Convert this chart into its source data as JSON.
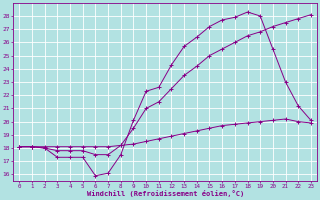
{
  "background_color": "#b2e2e2",
  "grid_color": "#d0f0f0",
  "line_color": "#880088",
  "xlabel": "Windchill (Refroidissement éolien,°C)",
  "xlim": [
    -0.5,
    23.5
  ],
  "ylim": [
    15.5,
    29.0
  ],
  "yticks": [
    16,
    17,
    18,
    19,
    20,
    21,
    22,
    23,
    24,
    25,
    26,
    27,
    28
  ],
  "xticks": [
    0,
    1,
    2,
    3,
    4,
    5,
    6,
    7,
    8,
    9,
    10,
    11,
    12,
    13,
    14,
    15,
    16,
    17,
    18,
    19,
    20,
    21,
    22,
    23
  ],
  "curves": [
    {
      "x": [
        0,
        1,
        2,
        3,
        4,
        5,
        6,
        7,
        8,
        9,
        10,
        11,
        12,
        13,
        14,
        15,
        16,
        17,
        18,
        19,
        20,
        21,
        22,
        23
      ],
      "y": [
        18.1,
        18.1,
        18.0,
        17.3,
        17.3,
        17.3,
        15.9,
        16.1,
        17.5,
        20.1,
        22.3,
        22.6,
        24.3,
        25.7,
        26.4,
        27.2,
        27.7,
        27.9,
        28.3,
        28.0,
        25.5,
        23.0,
        21.2,
        20.1
      ]
    },
    {
      "x": [
        0,
        1,
        2,
        3,
        4,
        5,
        6,
        7,
        8,
        9,
        10,
        11,
        12,
        13,
        14,
        15,
        16,
        17,
        18,
        19,
        20,
        21,
        22,
        23
      ],
      "y": [
        18.1,
        18.1,
        18.0,
        17.8,
        17.8,
        17.8,
        17.5,
        17.5,
        18.2,
        19.5,
        21.0,
        21.5,
        22.5,
        23.5,
        24.2,
        25.0,
        25.5,
        26.0,
        26.5,
        26.8,
        27.2,
        27.5,
        27.8,
        28.1
      ]
    },
    {
      "x": [
        0,
        1,
        2,
        3,
        4,
        5,
        6,
        7,
        8,
        9,
        10,
        11,
        12,
        13,
        14,
        15,
        16,
        17,
        18,
        19,
        20,
        21,
        22,
        23
      ],
      "y": [
        18.1,
        18.1,
        18.1,
        18.1,
        18.1,
        18.1,
        18.1,
        18.1,
        18.2,
        18.3,
        18.5,
        18.7,
        18.9,
        19.1,
        19.3,
        19.5,
        19.7,
        19.8,
        19.9,
        20.0,
        20.1,
        20.2,
        20.0,
        19.9
      ]
    }
  ]
}
